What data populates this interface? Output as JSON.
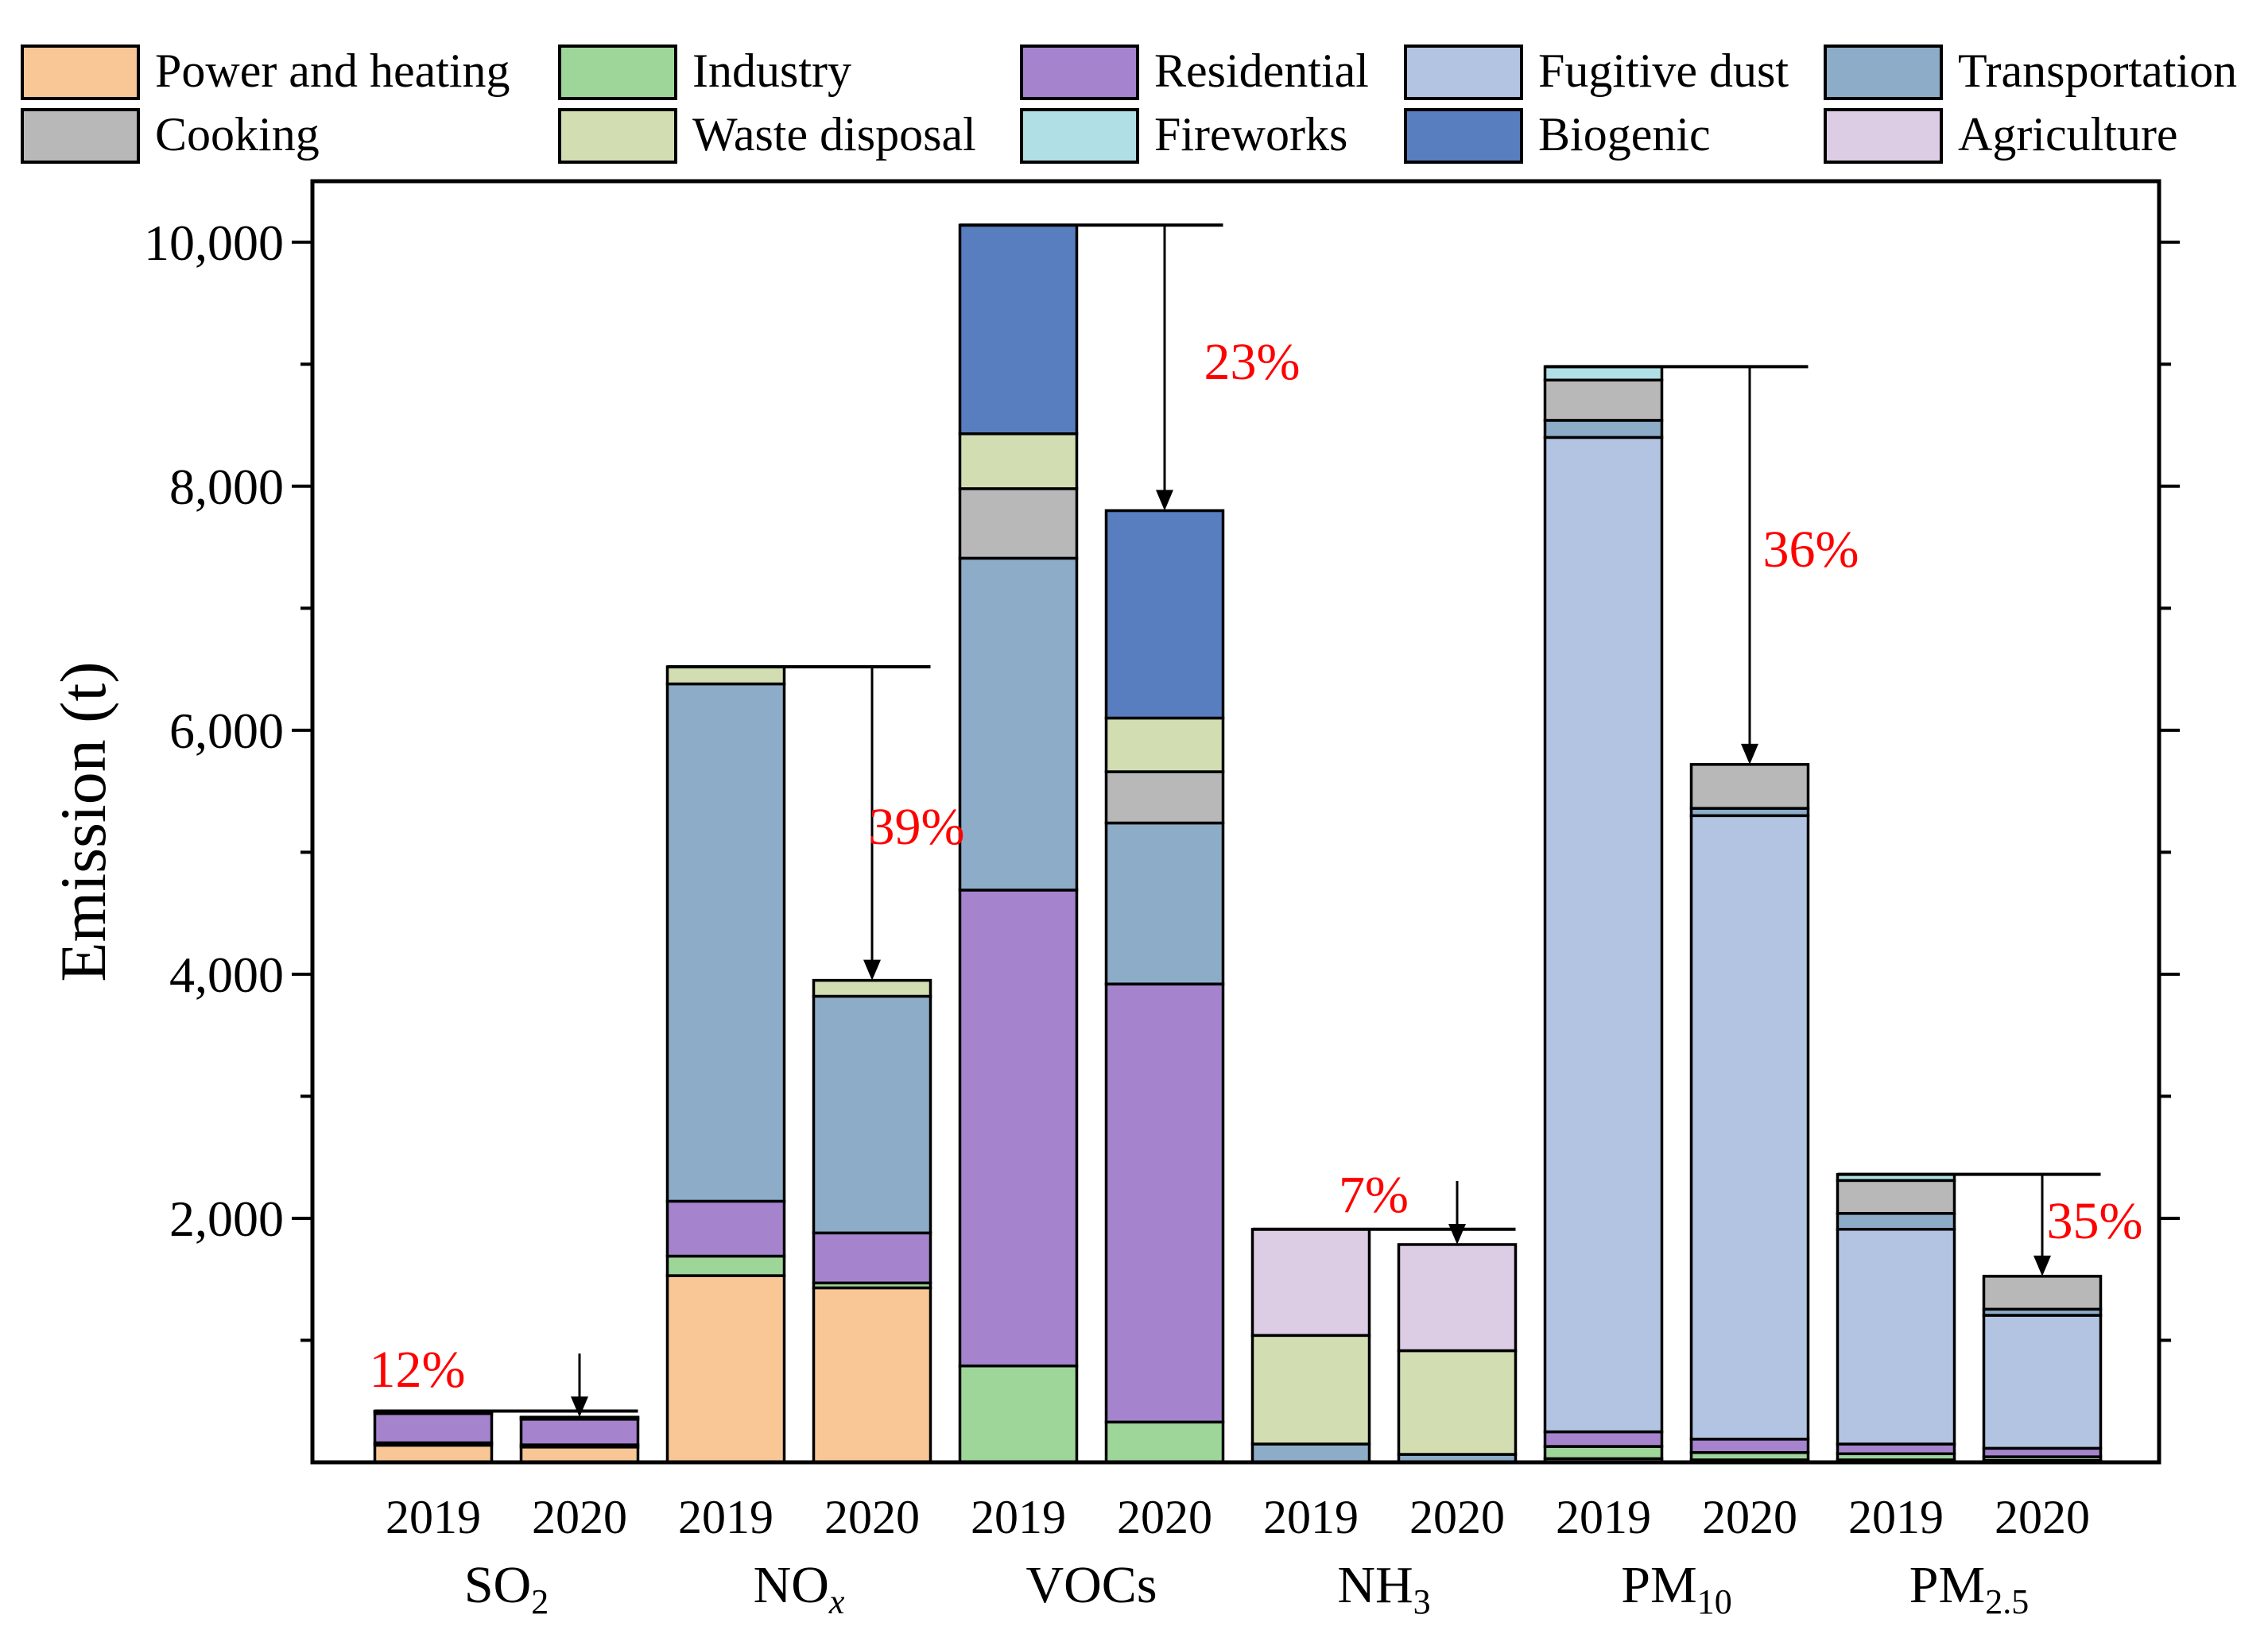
{
  "chart_data": {
    "type": "bar",
    "stacked": true,
    "title": "",
    "xlabel": "",
    "ylabel": "Emission (t)",
    "ylim": [
      0,
      10500
    ],
    "yticks": [
      2000,
      4000,
      6000,
      8000,
      10000
    ],
    "ytick_labels": [
      "2,000",
      "4,000",
      "6,000",
      "8,000",
      "10,000"
    ],
    "grid": false,
    "legend_position": "top",
    "sectors": [
      {
        "name": "Power and heating",
        "color": "#F9C796"
      },
      {
        "name": "Industry",
        "color": "#9ED69A"
      },
      {
        "name": "Residential",
        "color": "#A584CD"
      },
      {
        "name": "Fugitive dust",
        "color": "#B3C4E3"
      },
      {
        "name": "Transportation",
        "color": "#8DACC8"
      },
      {
        "name": "Cooking",
        "color": "#B8B8B8"
      },
      {
        "name": "Waste disposal",
        "color": "#D2DEB2"
      },
      {
        "name": "Fireworks",
        "color": "#B0E0E6"
      },
      {
        "name": "Biogenic",
        "color": "#587EC0"
      },
      {
        "name": "Agriculture",
        "color": "#DCCCE4"
      }
    ],
    "pollutants": [
      {
        "main": "SO",
        "sub": "2",
        "sub_italic": false,
        "reduction": "12%",
        "bars": [
          {
            "year": "2019",
            "values": {
              "Power and heating": 140,
              "Industry": 20,
              "Residential": 240,
              "Transportation": 15,
              "Waste disposal": 5
            }
          },
          {
            "year": "2020",
            "values": {
              "Power and heating": 125,
              "Industry": 18,
              "Residential": 210,
              "Transportation": 12,
              "Waste disposal": 5
            }
          }
        ]
      },
      {
        "main": "NO",
        "sub": "x",
        "sub_italic": true,
        "reduction": "39%",
        "bars": [
          {
            "year": "2019",
            "values": {
              "Power and heating": 1530,
              "Industry": 160,
              "Residential": 450,
              "Transportation": 4240,
              "Waste disposal": 140
            }
          },
          {
            "year": "2020",
            "values": {
              "Power and heating": 1430,
              "Industry": 40,
              "Residential": 410,
              "Transportation": 1940,
              "Waste disposal": 130
            }
          }
        ]
      },
      {
        "main": "VOCs",
        "sub": "",
        "sub_italic": false,
        "reduction": "23%",
        "bars": [
          {
            "year": "2019",
            "values": {
              "Industry": 790,
              "Residential": 3900,
              "Transportation": 2720,
              "Cooking": 570,
              "Waste disposal": 450,
              "Biogenic": 1710
            }
          },
          {
            "year": "2020",
            "values": {
              "Industry": 330,
              "Residential": 3590,
              "Transportation": 1320,
              "Cooking": 420,
              "Waste disposal": 440,
              "Biogenic": 1700
            }
          }
        ]
      },
      {
        "main": "NH",
        "sub": "3",
        "sub_italic": false,
        "reduction": "7%",
        "bars": [
          {
            "year": "2019",
            "values": {
              "Transportation": 150,
              "Waste disposal": 890,
              "Agriculture": 870
            }
          },
          {
            "year": "2020",
            "values": {
              "Transportation": 65,
              "Waste disposal": 850,
              "Agriculture": 870
            }
          }
        ]
      },
      {
        "main": "PM",
        "sub": "10",
        "sub_italic": false,
        "reduction": "36%",
        "bars": [
          {
            "year": "2019",
            "values": {
              "Power and heating": 30,
              "Industry": 100,
              "Residential": 120,
              "Fugitive dust": 8150,
              "Transportation": 140,
              "Cooking": 330,
              "Fireworks": 110
            }
          },
          {
            "year": "2020",
            "values": {
              "Power and heating": 20,
              "Industry": 60,
              "Residential": 110,
              "Fugitive dust": 5110,
              "Transportation": 60,
              "Cooking": 360
            }
          }
        ]
      },
      {
        "main": "PM",
        "sub": "2.5",
        "sub_italic": false,
        "reduction": "35%",
        "bars": [
          {
            "year": "2019",
            "values": {
              "Power and heating": 20,
              "Industry": 50,
              "Residential": 80,
              "Fugitive dust": 1760,
              "Transportation": 130,
              "Cooking": 270,
              "Fireworks": 50
            }
          },
          {
            "year": "2020",
            "values": {
              "Power and heating": 15,
              "Industry": 30,
              "Residential": 70,
              "Fugitive dust": 1090,
              "Transportation": 50,
              "Cooking": 270
            }
          }
        ]
      }
    ]
  }
}
